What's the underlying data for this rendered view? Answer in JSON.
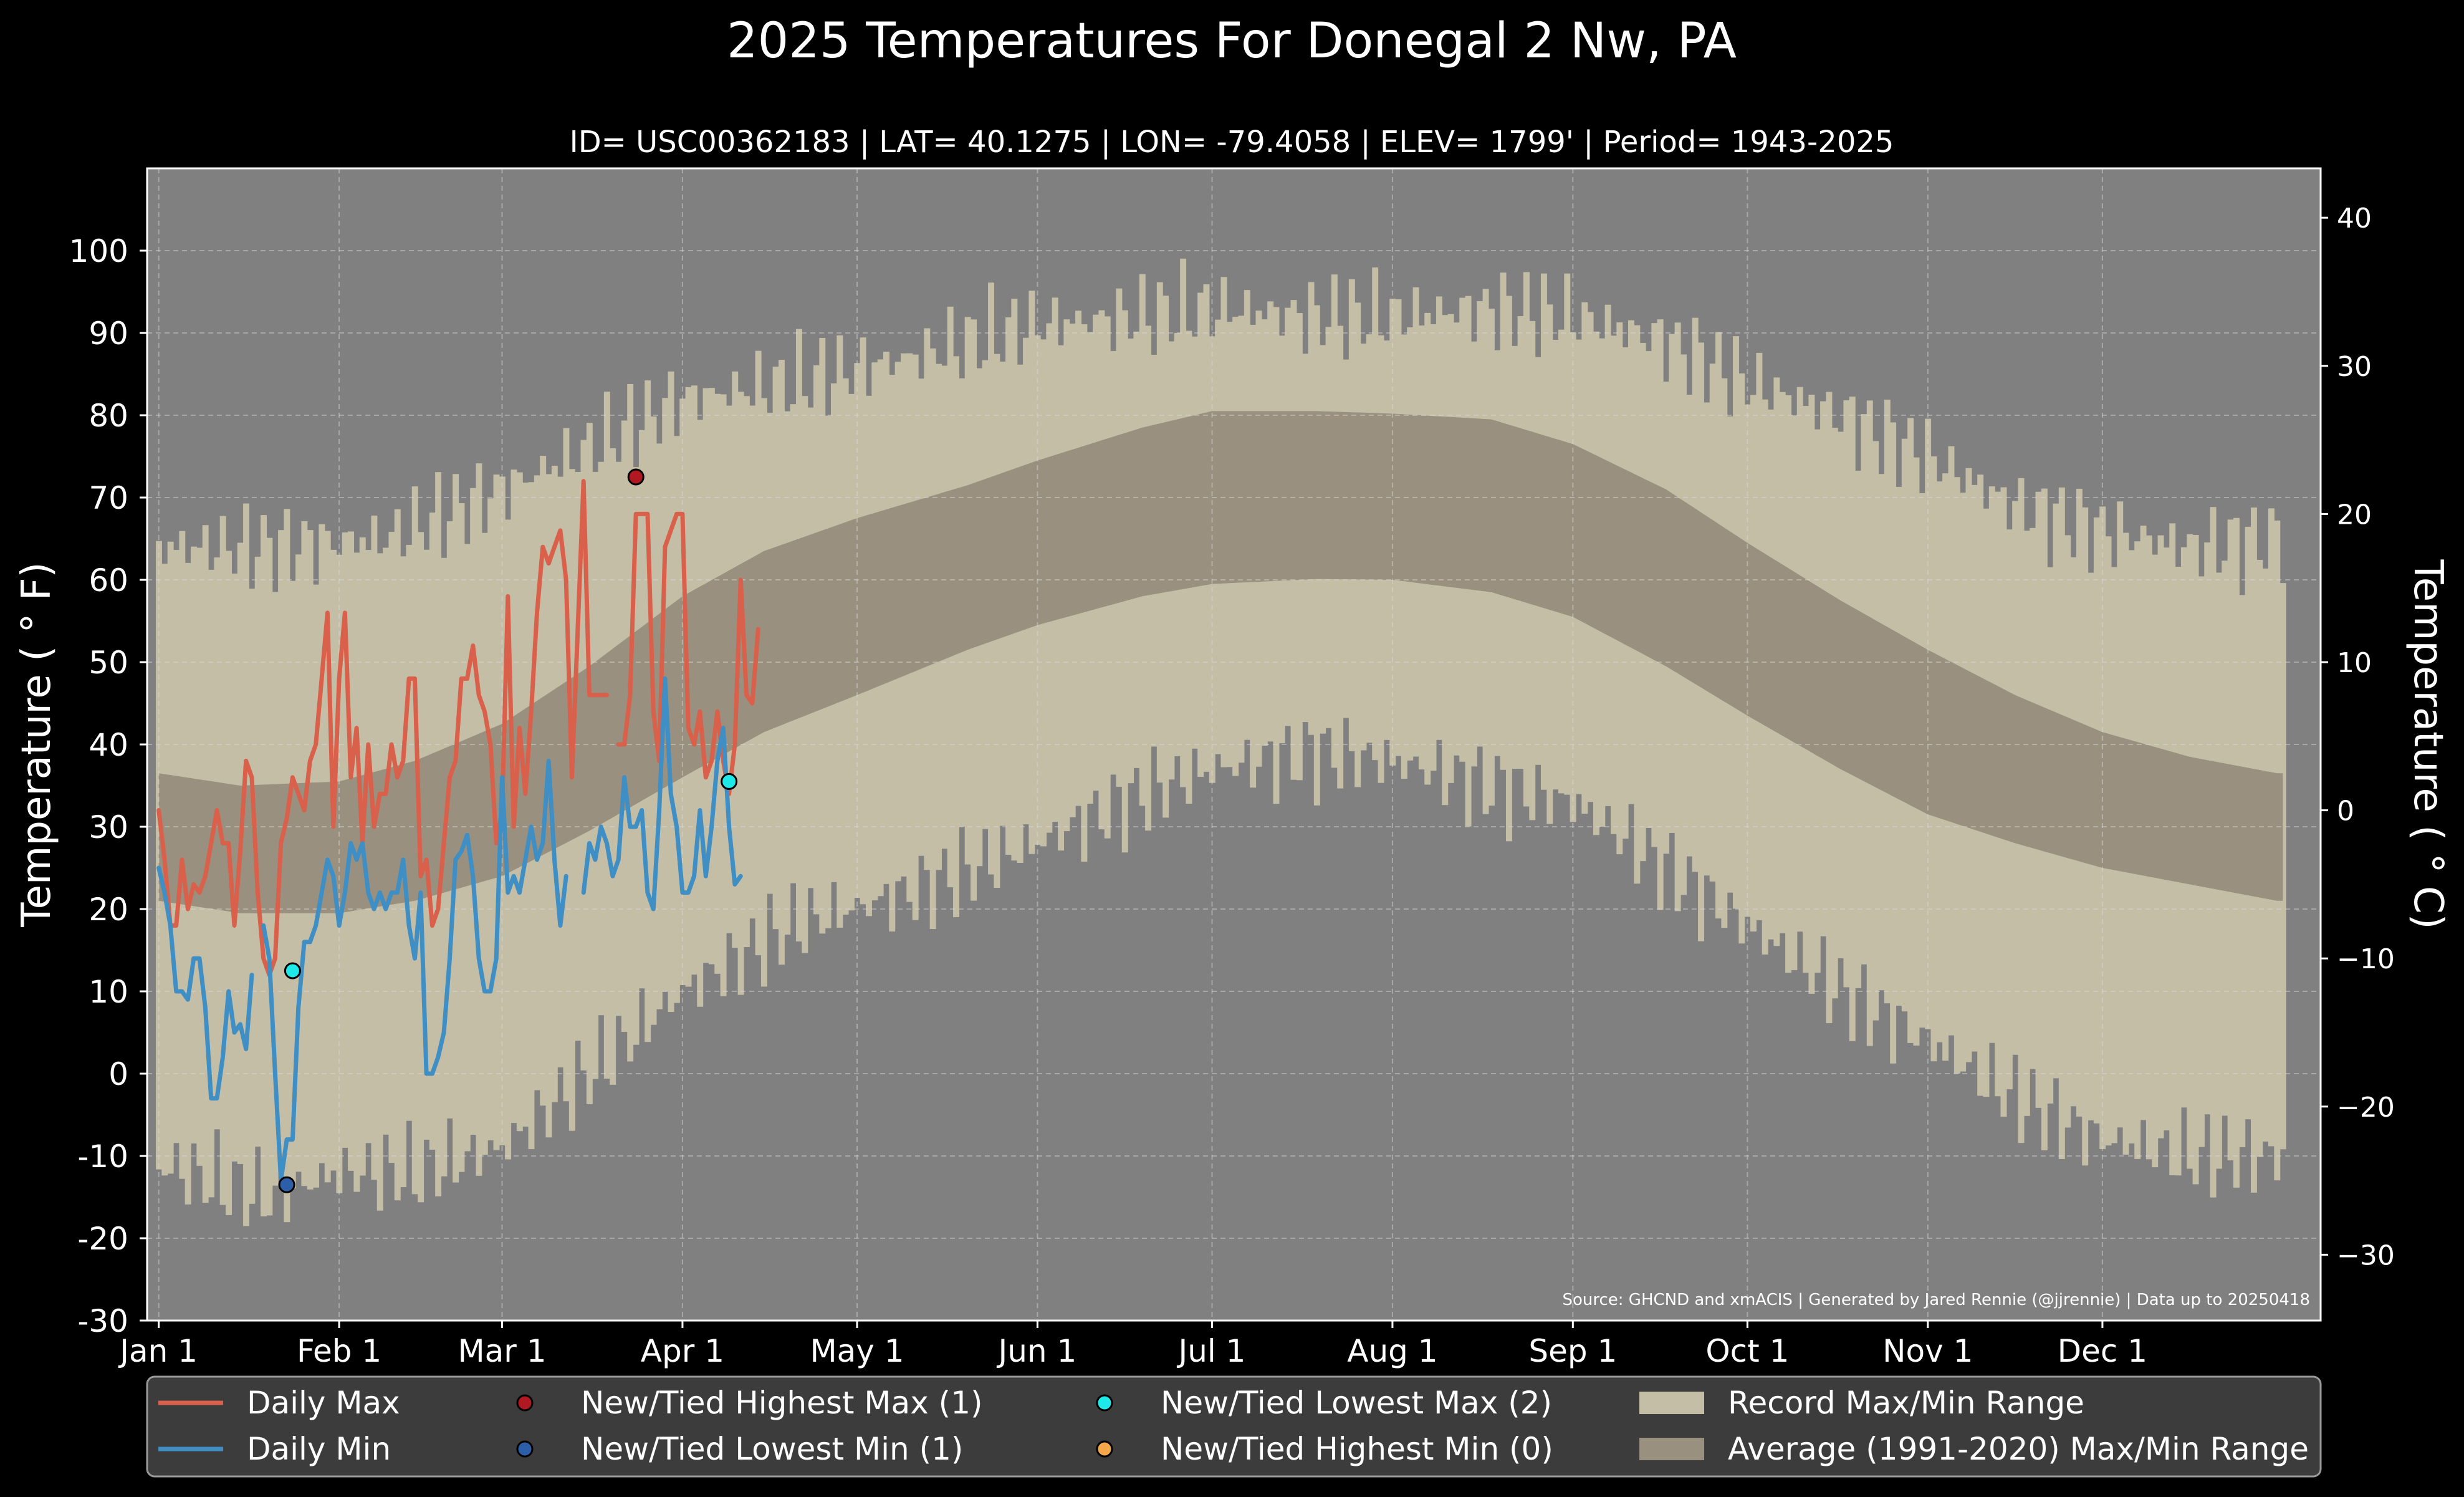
{
  "chart_data": {
    "type": "line",
    "title": "2025 Temperatures For Donegal 2 Nw, PA",
    "subtitle": "ID= USC00362183 | LAT= 40.1275 | LON= -79.4058 | ELEV= 1799' | Period= 1943-2025",
    "ylabel_left": "Temperature ($^\\circ$F)",
    "ylabel_left_text": "Temperature ( ° F)",
    "ylabel_right_text": "Temperature ( ° C)",
    "source": "Source: GHCND and xmACIS | Generated by Jared Rennie (@jjrennie) | Data up to 20250418",
    "ylim_f": [
      -30,
      110
    ],
    "yticks_f": [
      "-30",
      "-20",
      "-10",
      "0",
      "10",
      "20",
      "30",
      "40",
      "50",
      "60",
      "70",
      "80",
      "90",
      "100"
    ],
    "yticks_c": [
      "−30",
      "−20",
      "−10",
      "0",
      "10",
      "20",
      "30",
      "40"
    ],
    "xticks": [
      {
        "label": "Jan 1",
        "day": 1
      },
      {
        "label": "Feb 1",
        "day": 32
      },
      {
        "label": "Mar 1",
        "day": 60
      },
      {
        "label": "Apr 1",
        "day": 91
      },
      {
        "label": "May 1",
        "day": 121
      },
      {
        "label": "Jun 1",
        "day": 152
      },
      {
        "label": "Jul 1",
        "day": 182
      },
      {
        "label": "Aug 1",
        "day": 213
      },
      {
        "label": "Sep 1",
        "day": 244
      },
      {
        "label": "Oct 1",
        "day": 274
      },
      {
        "label": "Nov 1",
        "day": 305
      },
      {
        "label": "Dec 1",
        "day": 335
      }
    ],
    "grid": true,
    "legend_position": "bottom",
    "colors": {
      "background": "#000000",
      "plot_bg": "#808080",
      "record_range": "#c5bea6",
      "average_range": "#9a907f",
      "daily_max": "#d9604a",
      "daily_min": "#3f8fc4",
      "highest_max": "#b01822",
      "lowest_min": "#2d5fa8",
      "lowest_max": "#1ee8e8",
      "highest_min": "#f4a64a"
    },
    "record_max_anchors": [
      [
        1,
        64
      ],
      [
        20,
        64
      ],
      [
        40,
        65
      ],
      [
        60,
        71
      ],
      [
        75,
        76
      ],
      [
        91,
        82
      ],
      [
        110,
        84
      ],
      [
        130,
        87
      ],
      [
        152,
        91
      ],
      [
        170,
        92
      ],
      [
        182,
        93
      ],
      [
        200,
        92
      ],
      [
        213,
        92
      ],
      [
        230,
        93
      ],
      [
        244,
        92
      ],
      [
        260,
        89
      ],
      [
        274,
        84
      ],
      [
        290,
        80
      ],
      [
        305,
        75
      ],
      [
        320,
        69
      ],
      [
        335,
        66
      ],
      [
        350,
        64
      ],
      [
        365,
        65
      ]
    ],
    "record_min_anchors": [
      [
        1,
        -11
      ],
      [
        20,
        -15
      ],
      [
        32,
        -12
      ],
      [
        45,
        -12
      ],
      [
        60,
        -9
      ],
      [
        75,
        0
      ],
      [
        91,
        10
      ],
      [
        110,
        18
      ],
      [
        130,
        22
      ],
      [
        152,
        28
      ],
      [
        170,
        34
      ],
      [
        182,
        37
      ],
      [
        200,
        39
      ],
      [
        213,
        38
      ],
      [
        230,
        35
      ],
      [
        244,
        33
      ],
      [
        260,
        25
      ],
      [
        274,
        18
      ],
      [
        290,
        10
      ],
      [
        305,
        4
      ],
      [
        320,
        -3
      ],
      [
        335,
        -8
      ],
      [
        350,
        -10
      ],
      [
        365,
        -10
      ]
    ],
    "average_max_anchors": [
      [
        1,
        36.5
      ],
      [
        15,
        35
      ],
      [
        32,
        35.5
      ],
      [
        45,
        38
      ],
      [
        60,
        42.5
      ],
      [
        75,
        49.5
      ],
      [
        91,
        58
      ],
      [
        105,
        63.5
      ],
      [
        121,
        67.5
      ],
      [
        140,
        71.5
      ],
      [
        152,
        74.5
      ],
      [
        170,
        78.5
      ],
      [
        182,
        80.5
      ],
      [
        200,
        80.5
      ],
      [
        213,
        80.2
      ],
      [
        230,
        79.5
      ],
      [
        244,
        76.5
      ],
      [
        260,
        71
      ],
      [
        274,
        64.5
      ],
      [
        290,
        57.5
      ],
      [
        305,
        51.5
      ],
      [
        320,
        46
      ],
      [
        335,
        41.5
      ],
      [
        350,
        38.5
      ],
      [
        365,
        36.5
      ]
    ],
    "average_min_anchors": [
      [
        1,
        21
      ],
      [
        15,
        19.5
      ],
      [
        32,
        19.5
      ],
      [
        45,
        21
      ],
      [
        60,
        24
      ],
      [
        75,
        29.5
      ],
      [
        91,
        36
      ],
      [
        105,
        41.5
      ],
      [
        121,
        46
      ],
      [
        140,
        51.5
      ],
      [
        152,
        54.5
      ],
      [
        170,
        58
      ],
      [
        182,
        59.5
      ],
      [
        200,
        60.1
      ],
      [
        213,
        60
      ],
      [
        230,
        58.5
      ],
      [
        244,
        55.5
      ],
      [
        260,
        49.5
      ],
      [
        274,
        43.5
      ],
      [
        290,
        37
      ],
      [
        305,
        31.5
      ],
      [
        320,
        28
      ],
      [
        335,
        25
      ],
      [
        350,
        23
      ],
      [
        365,
        21
      ]
    ],
    "series": [
      {
        "name": "Daily Max",
        "start_day": 1,
        "values": [
          32,
          26,
          18,
          18,
          26,
          20,
          23,
          22,
          24,
          28,
          32,
          28,
          28,
          18,
          27,
          38,
          36,
          22,
          14,
          12,
          14,
          28,
          31,
          36,
          34,
          32,
          38,
          40,
          48,
          56,
          30,
          48,
          56,
          36,
          42,
          28,
          40,
          30,
          34,
          34,
          40,
          36,
          38,
          48,
          48,
          24,
          26,
          18,
          20,
          28,
          36,
          38,
          48,
          48,
          52,
          46,
          44,
          40,
          28,
          32,
          58,
          30,
          42,
          34,
          44,
          56,
          64,
          62,
          64,
          66,
          60,
          36,
          54,
          72,
          46,
          46,
          46,
          46,
          null,
          40,
          40,
          46,
          68,
          68,
          68,
          44,
          38,
          64,
          66,
          68,
          68,
          42,
          40,
          44,
          36,
          38,
          44,
          38,
          34,
          40,
          60,
          46,
          45,
          54
        ]
      },
      {
        "name": "Daily Min",
        "start_day": 1,
        "values": [
          25,
          22,
          18,
          10,
          10,
          9,
          14,
          14,
          8,
          -3,
          -3,
          2,
          10,
          5,
          6,
          3,
          12,
          null,
          18,
          14,
          0,
          -13,
          -8,
          -8,
          8,
          16,
          16,
          18,
          22,
          26,
          24,
          18,
          22,
          28,
          26,
          28,
          22,
          20,
          22,
          20,
          22,
          22,
          26,
          18,
          14,
          22,
          0,
          0,
          2,
          5,
          14,
          26,
          27,
          29,
          24,
          14,
          10,
          10,
          14,
          36,
          22,
          24,
          22,
          26,
          30,
          26,
          28,
          38,
          26,
          18,
          24,
          null,
          null,
          22,
          28,
          26,
          30,
          28,
          24,
          26,
          36,
          30,
          30,
          32,
          22,
          20,
          32,
          48,
          34,
          30,
          22,
          22,
          24,
          32,
          24,
          30,
          38,
          42,
          30,
          23,
          24
        ]
      }
    ],
    "record_markers": [
      {
        "type": "New/Tied Highest Max",
        "day": 83,
        "value": 72.5
      },
      {
        "type": "New/Tied Lowest Min",
        "day": 23,
        "value": -13.5
      },
      {
        "type": "New/Tied Lowest Max",
        "day": 24,
        "value": 12.5
      },
      {
        "type": "New/Tied Lowest Max",
        "day": 99,
        "value": 35.5
      }
    ],
    "legend": [
      {
        "key": "daily_max",
        "label": "Daily Max"
      },
      {
        "key": "daily_min",
        "label": "Daily Min"
      },
      {
        "key": "highest_max",
        "label": "New/Tied Highest Max (1)"
      },
      {
        "key": "lowest_min",
        "label": "New/Tied Lowest Min (1)"
      },
      {
        "key": "lowest_max",
        "label": "New/Tied Lowest Max (2)"
      },
      {
        "key": "highest_min",
        "label": "New/Tied Highest Min (0)"
      },
      {
        "key": "record_range",
        "label": "Record Max/Min Range"
      },
      {
        "key": "average_range",
        "label": "Average (1991-2020) Max/Min Range"
      }
    ]
  }
}
